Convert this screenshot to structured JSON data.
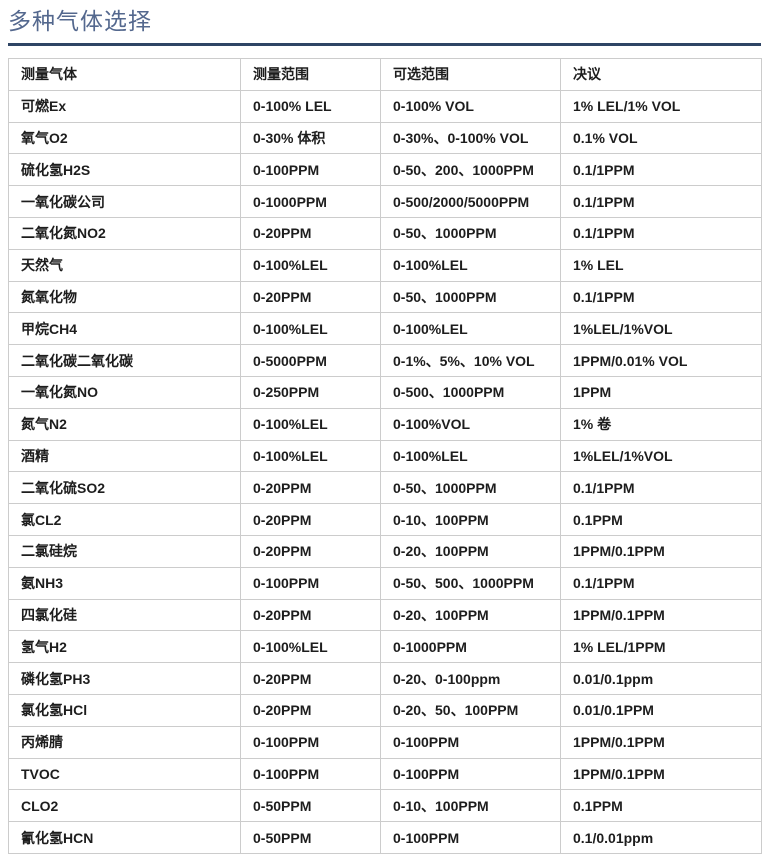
{
  "page": {
    "title": "多种气体选择"
  },
  "colors": {
    "title_text": "#54688e",
    "divider": "#2f4565",
    "table_border": "#cccccc",
    "cell_text": "#1d1d1d",
    "background": "#ffffff"
  },
  "table": {
    "columns": [
      "测量气体",
      "测量范围",
      "可选范围",
      "决议"
    ],
    "rows": [
      {
        "gas": "可燃Ex",
        "range": "0-100% LEL",
        "optional": "0-100% VOL",
        "resolution": "1% LEL/1% VOL"
      },
      {
        "gas": "氧气O2",
        "range": "0-30% 体积",
        "optional": "0-30%、0-100% VOL",
        "resolution": "0.1% VOL"
      },
      {
        "gas": "硫化氢H2S",
        "range": "0-100PPM",
        "optional": "0-50、200、1000PPM",
        "resolution": "0.1/1PPM"
      },
      {
        "gas": "一氧化碳公司",
        "range": "0-1000PPM",
        "optional": "0-500/2000/5000PPM",
        "resolution": "0.1/1PPM"
      },
      {
        "gas": "二氧化氮NO2",
        "range": "0-20PPM",
        "optional": "0-50、1000PPM",
        "resolution": "0.1/1PPM"
      },
      {
        "gas": "天然气",
        "range": "0-100%LEL",
        "optional": "0-100%LEL",
        "resolution": "1% LEL"
      },
      {
        "gas": "氮氧化物",
        "range": "0-20PPM",
        "optional": "0-50、1000PPM",
        "resolution": "0.1/1PPM"
      },
      {
        "gas": "甲烷CH4",
        "range": "0-100%LEL",
        "optional": "0-100%LEL",
        "resolution": "1%LEL/1%VOL"
      },
      {
        "gas": "二氧化碳二氧化碳",
        "range": "0-5000PPM",
        "optional": "0-1%、5%、10% VOL",
        "resolution": "1PPM/0.01% VOL"
      },
      {
        "gas": "一氧化氮NO",
        "range": "0-250PPM",
        "optional": "0-500、1000PPM",
        "resolution": "1PPM"
      },
      {
        "gas": "氮气N2",
        "range": "0-100%LEL",
        "optional": "0-100%VOL",
        "resolution": "1% 卷"
      },
      {
        "gas": "酒精",
        "range": "0-100%LEL",
        "optional": "0-100%LEL",
        "resolution": "1%LEL/1%VOL"
      },
      {
        "gas": "二氧化硫SO2",
        "range": "0-20PPM",
        "optional": "0-50、1000PPM",
        "resolution": "0.1/1PPM"
      },
      {
        "gas": "氯CL2",
        "range": "0-20PPM",
        "optional": "0-10、100PPM",
        "resolution": "0.1PPM"
      },
      {
        "gas": "二氯硅烷",
        "range": "0-20PPM",
        "optional": "0-20、100PPM",
        "resolution": "1PPM/0.1PPM"
      },
      {
        "gas": "氨NH3",
        "range": "0-100PPM",
        "optional": "0-50、500、1000PPM",
        "resolution": "0.1/1PPM"
      },
      {
        "gas": "四氯化硅",
        "range": "0-20PPM",
        "optional": "0-20、100PPM",
        "resolution": "1PPM/0.1PPM"
      },
      {
        "gas": "氢气H2",
        "range": "0-100%LEL",
        "optional": "0-1000PPM",
        "resolution": "1% LEL/1PPM"
      },
      {
        "gas": "磷化氢PH3",
        "range": "0-20PPM",
        "optional": "0-20、0-100ppm",
        "resolution": "0.01/0.1ppm"
      },
      {
        "gas": "氯化氢HCl",
        "range": "0-20PPM",
        "optional": "0-20、50、100PPM",
        "resolution": "0.01/0.1PPM"
      },
      {
        "gas": "丙烯腈",
        "range": "0-100PPM",
        "optional": "0-100PPM",
        "resolution": "1PPM/0.1PPM"
      },
      {
        "gas": "TVOC",
        "range": "0-100PPM",
        "optional": "0-100PPM",
        "resolution": "1PPM/0.1PPM"
      },
      {
        "gas": "CLO2",
        "range": "0-50PPM",
        "optional": "0-10、100PPM",
        "resolution": "0.1PPM"
      },
      {
        "gas": "氰化氢HCN",
        "range": "0-50PPM",
        "optional": "0-100PPM",
        "resolution": "0.1/0.01ppm"
      }
    ]
  }
}
